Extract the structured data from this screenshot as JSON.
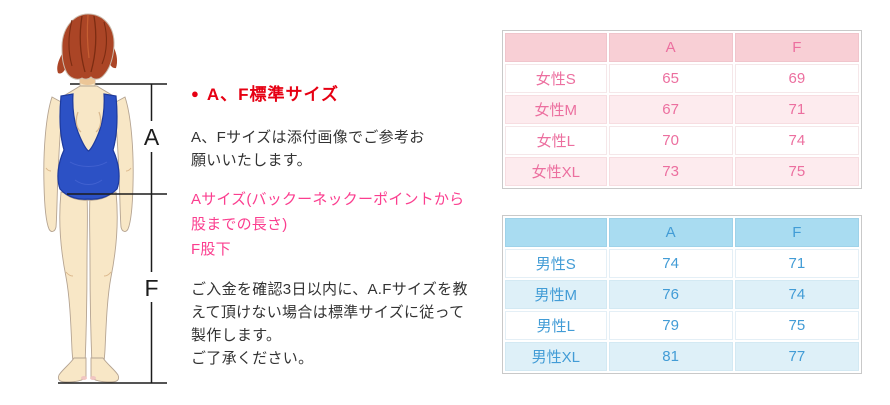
{
  "diagram": {
    "label_a": "A",
    "label_f": "F",
    "colors": {
      "hair": "#ab4526",
      "skin": "#f8e7c6",
      "swimsuit": "#2c51c5",
      "measure_line": "#1c1c1c"
    }
  },
  "info": {
    "heading": {
      "bullet": "●",
      "text": "A、F標準サイズ",
      "color": "#e60013"
    },
    "para1": "A、Fサイズは添付画像でご参考お\n願いいたします。",
    "note_pink": "Aサイズ(バックーネックーポイントから\n股までの長さ)\nF股下",
    "note_pink_color": "#fb3e8f",
    "para2": "ご入金を確認3日以内に、A.Fサイズを教\nえて頂けない場合は標準サイズに従って\n製作します。\nご了承ください。",
    "text_color": "#333333"
  },
  "tables": {
    "women": {
      "headers": [
        "",
        "A",
        "F"
      ],
      "rows": [
        [
          "女性S",
          "65",
          "69"
        ],
        [
          "女性M",
          "67",
          "71"
        ],
        [
          "女性L",
          "70",
          "74"
        ],
        [
          "女性XL",
          "73",
          "75"
        ]
      ],
      "header_bg": "#f8cfd5",
      "alt_row_bg": "#fdebee",
      "text_color": "#ec6f9f"
    },
    "men": {
      "headers": [
        "",
        "A",
        "F"
      ],
      "rows": [
        [
          "男性S",
          "74",
          "71"
        ],
        [
          "男性M",
          "76",
          "74"
        ],
        [
          "男性L",
          "79",
          "75"
        ],
        [
          "男性XL",
          "81",
          "77"
        ]
      ],
      "header_bg": "#a9dcf1",
      "alt_row_bg": "#def0f8",
      "text_color": "#429cd6"
    }
  }
}
